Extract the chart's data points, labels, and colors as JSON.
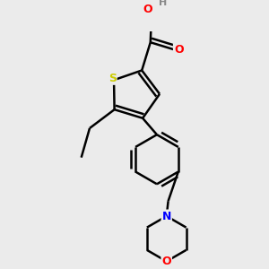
{
  "background_color": "#ebebeb",
  "atom_colors": {
    "S": "#cccc00",
    "O": "#ff0000",
    "N": "#0000ff",
    "C": "#000000",
    "H": "#888888"
  },
  "bond_color": "#000000",
  "bond_width": 1.8,
  "dbo": 0.05,
  "figsize": [
    3.0,
    3.0
  ],
  "dpi": 100
}
